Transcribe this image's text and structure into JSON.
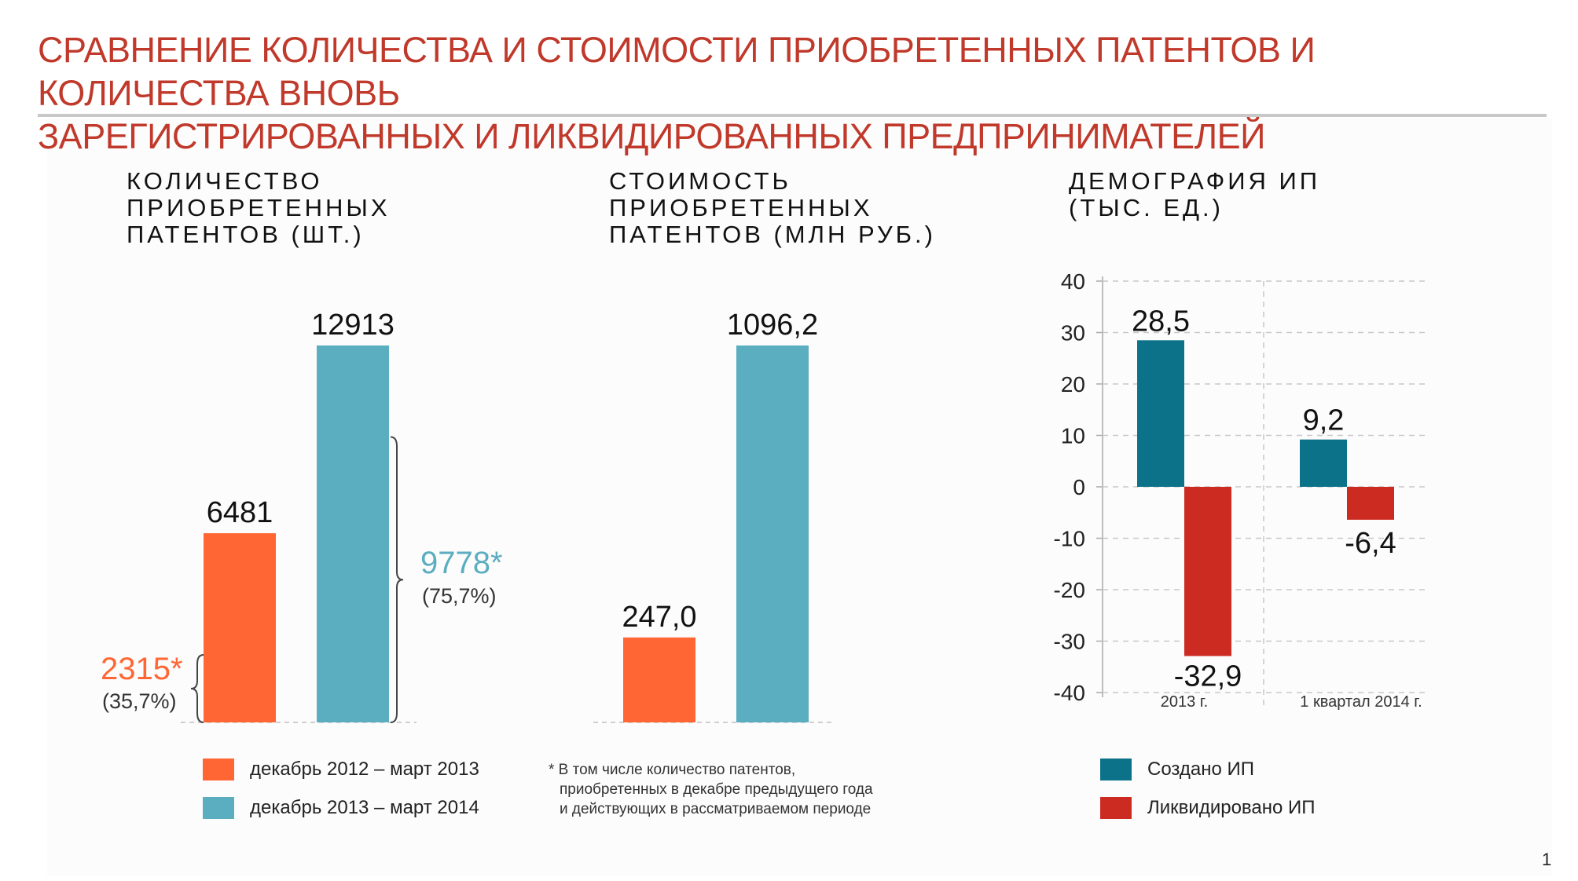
{
  "title": {
    "line1": "СРАВНЕНИЕ КОЛИЧЕСТВА И СТОИМОСТИ ПРИОБРЕТЕННЫХ ПАТЕНТОВ И КОЛИЧЕСТВА ВНОВЬ",
    "line2": "ЗАРЕГИСТРИРОВАННЫХ И ЛИКВИДИРОВАННЫХ ПРЕДПРИНИМАТЕЛЕЙ"
  },
  "colors": {
    "title": "#c0392b",
    "orange": "#ff6633",
    "blue": "#5badc0",
    "teal": "#0b7289",
    "red": "#cc2b22"
  },
  "chart_data": [
    {
      "type": "bar",
      "title": [
        "КОЛИЧЕСТВО",
        "ПРИОБРЕТЕННЫХ",
        "ПАТЕНТОВ (ШТ.)"
      ],
      "categories": [
        "декабрь 2012 – март 2013",
        "декабрь 2013 – март 2014"
      ],
      "values": [
        6481,
        12913
      ],
      "labels": [
        "6481",
        "12913"
      ],
      "annotations": [
        {
          "value": 2315,
          "label": "2315*",
          "pct": "(35,7%)",
          "series": 0
        },
        {
          "value": 9778,
          "label": "9778*",
          "pct": "(75,7%)",
          "series": 1
        }
      ],
      "ylim": [
        0,
        14000
      ]
    },
    {
      "type": "bar",
      "title": [
        "СТОИМОСТЬ",
        "ПРИОБРЕТЕННЫХ",
        "ПАТЕНТОВ (МЛН РУБ.)"
      ],
      "categories": [
        "декабрь 2012 – март 2013",
        "декабрь 2013 – март 2014"
      ],
      "values": [
        247.0,
        1096.2
      ],
      "labels": [
        "247,0",
        "1096,2"
      ],
      "ylim": [
        0,
        1180
      ]
    },
    {
      "type": "bar",
      "title": [
        "ДЕМОГРАФИЯ ИП",
        "(ТЫС. ЕД.)"
      ],
      "categories": [
        "2013 г.",
        "1 квартал 2014 г."
      ],
      "series": [
        {
          "name": "Создано ИП",
          "values": [
            28.5,
            9.2
          ],
          "labels": [
            "28,5",
            "9,2"
          ]
        },
        {
          "name": "Ликвидировано ИП",
          "values": [
            -32.9,
            -6.4
          ],
          "labels": [
            "-32,9",
            "-6,4"
          ]
        }
      ],
      "yticks": [
        40,
        30,
        20,
        10,
        0,
        -10,
        -20,
        -30,
        -40
      ],
      "ylim": [
        -40,
        40
      ],
      "grid": true
    }
  ],
  "legend": {
    "left": [
      "декабрь 2012 – март 2013",
      "декабрь 2013 – март 2014"
    ],
    "right": [
      "Создано ИП",
      "Ликвидировано ИП"
    ]
  },
  "footnote": [
    "* В том числе количество патентов,",
    "приобретенных в декабре предыдущего года",
    "и действующих в рассматриваемом периоде"
  ],
  "page_number": "1"
}
